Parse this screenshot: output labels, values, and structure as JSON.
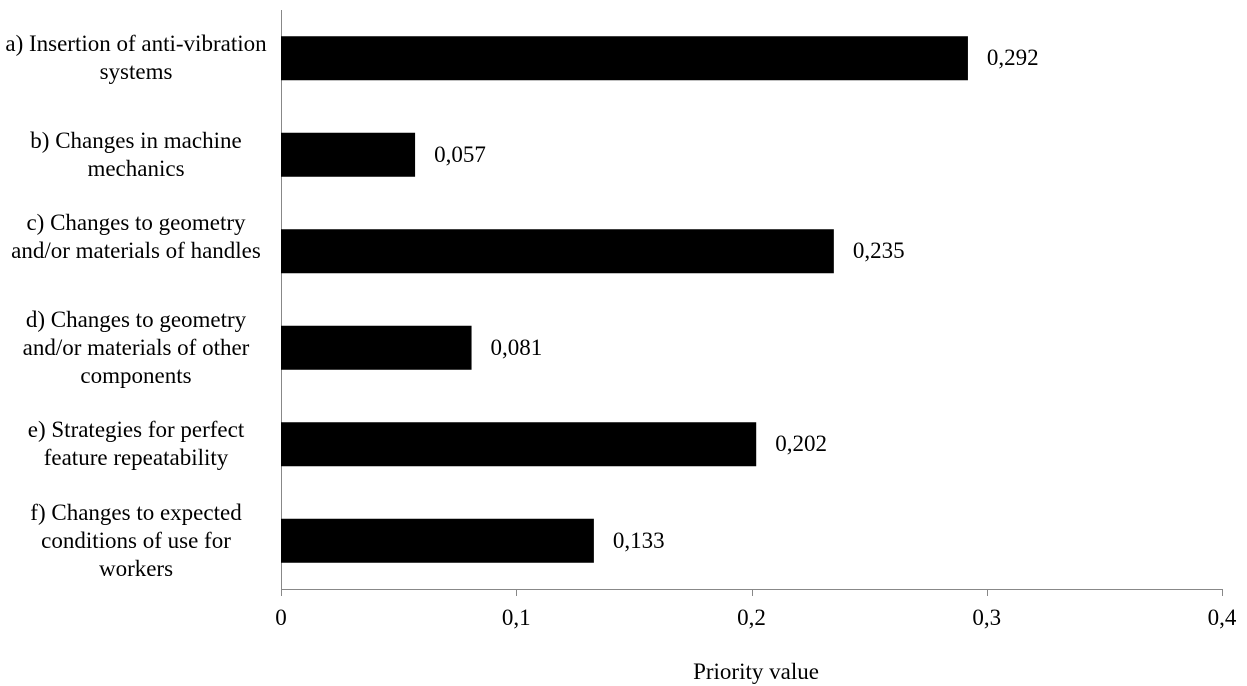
{
  "chart_data": {
    "type": "bar",
    "orientation": "horizontal",
    "categories": [
      "a) Insertion of anti-vibration systems",
      "b) Changes in machine mechanics",
      "c) Changes to geometry and/or materials of handles",
      "d) Changes to geometry and/or materials of other components",
      "e) Strategies for perfect feature repeatability",
      "f) Changes to expected conditions of use for workers"
    ],
    "values": [
      0.292,
      0.057,
      0.235,
      0.081,
      0.202,
      0.133
    ],
    "value_labels": [
      "0,292",
      "0,057",
      "0,235",
      "0,081",
      "0,202",
      "0,133"
    ],
    "xlabel": "Priority value",
    "ylabel": "",
    "xlim": [
      0,
      0.4
    ],
    "xticks": [
      0,
      0.1,
      0.2,
      0.3,
      0.4
    ],
    "xtick_labels": [
      "0",
      "0,1",
      "0,2",
      "0,3",
      "0,4"
    ],
    "bar_color": "#000000",
    "grid": false,
    "legend": "none"
  }
}
